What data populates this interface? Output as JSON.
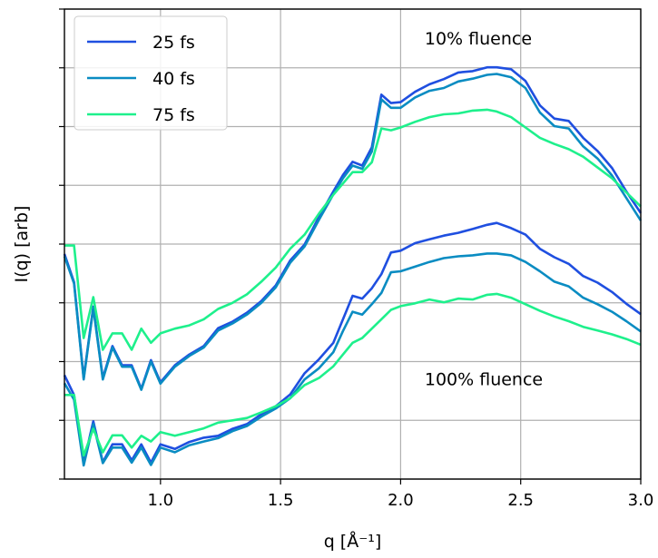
{
  "chart_data": {
    "type": "line",
    "xlabel": "q [Å⁻¹]",
    "ylabel": "I(q) [arb]",
    "xlim": [
      0.6,
      3.0
    ],
    "ylim": [
      0,
      1
    ],
    "xticks": [
      1.0,
      1.5,
      2.0,
      2.5,
      3.0
    ],
    "xtick_labels": [
      "1.0",
      "1.5",
      "2.0",
      "2.5",
      "3.0"
    ],
    "yticks": [
      0.0,
      0.125,
      0.25,
      0.375,
      0.5,
      0.625,
      0.75,
      0.875,
      1.0
    ],
    "grid": true,
    "legend_position": "top-left",
    "annotations": [
      {
        "text": "10% fluence",
        "x": 2.1,
        "y": 0.925
      },
      {
        "text": "100% fluence",
        "x": 2.1,
        "y": 0.2
      }
    ],
    "x": [
      0.6,
      0.64,
      0.68,
      0.72,
      0.76,
      0.8,
      0.84,
      0.88,
      0.92,
      0.96,
      1.0,
      1.06,
      1.12,
      1.18,
      1.24,
      1.3,
      1.36,
      1.42,
      1.48,
      1.54,
      1.6,
      1.66,
      1.72,
      1.76,
      1.8,
      1.84,
      1.88,
      1.92,
      1.96,
      2.0,
      2.06,
      2.12,
      2.18,
      2.24,
      2.3,
      2.36,
      2.4,
      2.46,
      2.52,
      2.58,
      2.64,
      2.7,
      2.76,
      2.82,
      2.88,
      2.94,
      3.0
    ],
    "series": [
      {
        "name": "25 fs",
        "color": "#1f4fe0",
        "group": "10% fluence",
        "values": [
          0.479,
          0.419,
          0.215,
          0.367,
          0.215,
          0.283,
          0.242,
          0.242,
          0.192,
          0.253,
          0.206,
          0.242,
          0.265,
          0.283,
          0.321,
          0.335,
          0.354,
          0.379,
          0.412,
          0.465,
          0.499,
          0.558,
          0.612,
          0.647,
          0.675,
          0.667,
          0.706,
          0.818,
          0.8,
          0.802,
          0.824,
          0.84,
          0.851,
          0.865,
          0.868,
          0.876,
          0.876,
          0.872,
          0.847,
          0.795,
          0.767,
          0.762,
          0.726,
          0.698,
          0.662,
          0.612,
          0.566
        ]
      },
      {
        "name": "40 fs",
        "color": "#0a8cc2",
        "group": "10% fluence",
        "values": [
          0.474,
          0.416,
          0.212,
          0.364,
          0.212,
          0.28,
          0.239,
          0.239,
          0.19,
          0.25,
          0.203,
          0.239,
          0.262,
          0.28,
          0.316,
          0.331,
          0.35,
          0.375,
          0.408,
          0.46,
          0.495,
          0.552,
          0.606,
          0.64,
          0.667,
          0.66,
          0.697,
          0.808,
          0.79,
          0.79,
          0.812,
          0.826,
          0.832,
          0.846,
          0.852,
          0.86,
          0.862,
          0.855,
          0.832,
          0.78,
          0.751,
          0.746,
          0.708,
          0.682,
          0.646,
          0.598,
          0.55
        ]
      },
      {
        "name": "75 fs",
        "color": "#1ef08c",
        "group": "10% fluence",
        "values": [
          0.497,
          0.497,
          0.3,
          0.387,
          0.275,
          0.31,
          0.31,
          0.275,
          0.32,
          0.29,
          0.31,
          0.32,
          0.327,
          0.34,
          0.362,
          0.375,
          0.393,
          0.42,
          0.45,
          0.49,
          0.52,
          0.565,
          0.605,
          0.629,
          0.653,
          0.653,
          0.674,
          0.746,
          0.742,
          0.748,
          0.76,
          0.77,
          0.776,
          0.778,
          0.784,
          0.786,
          0.782,
          0.77,
          0.748,
          0.726,
          0.713,
          0.702,
          0.686,
          0.663,
          0.64,
          0.61,
          0.58
        ]
      },
      {
        "name": "25 fs",
        "color": "#1f4fe0",
        "group": "100% fluence",
        "values": [
          0.221,
          0.179,
          0.034,
          0.123,
          0.036,
          0.074,
          0.074,
          0.04,
          0.074,
          0.035,
          0.074,
          0.064,
          0.079,
          0.088,
          0.092,
          0.107,
          0.117,
          0.138,
          0.155,
          0.18,
          0.225,
          0.255,
          0.29,
          0.34,
          0.39,
          0.384,
          0.406,
          0.436,
          0.482,
          0.486,
          0.502,
          0.51,
          0.518,
          0.524,
          0.532,
          0.541,
          0.545,
          0.534,
          0.52,
          0.49,
          0.472,
          0.458,
          0.432,
          0.418,
          0.398,
          0.373,
          0.351
        ]
      },
      {
        "name": "40 fs",
        "color": "#0a8cc2",
        "group": "100% fluence",
        "values": [
          0.204,
          0.169,
          0.029,
          0.117,
          0.034,
          0.067,
          0.067,
          0.035,
          0.067,
          0.03,
          0.067,
          0.057,
          0.072,
          0.08,
          0.087,
          0.102,
          0.113,
          0.133,
          0.15,
          0.172,
          0.212,
          0.236,
          0.27,
          0.315,
          0.356,
          0.35,
          0.372,
          0.396,
          0.44,
          0.442,
          0.452,
          0.462,
          0.47,
          0.474,
          0.476,
          0.48,
          0.48,
          0.476,
          0.462,
          0.442,
          0.42,
          0.41,
          0.386,
          0.372,
          0.356,
          0.336,
          0.314
        ]
      },
      {
        "name": "75 fs",
        "color": "#1ef08c",
        "group": "100% fluence",
        "values": [
          0.179,
          0.179,
          0.05,
          0.107,
          0.057,
          0.093,
          0.093,
          0.067,
          0.092,
          0.08,
          0.1,
          0.092,
          0.1,
          0.108,
          0.12,
          0.125,
          0.13,
          0.142,
          0.155,
          0.172,
          0.2,
          0.215,
          0.24,
          0.265,
          0.29,
          0.3,
          0.32,
          0.34,
          0.36,
          0.368,
          0.374,
          0.382,
          0.376,
          0.384,
          0.382,
          0.392,
          0.394,
          0.386,
          0.372,
          0.358,
          0.346,
          0.336,
          0.324,
          0.316,
          0.308,
          0.298,
          0.286
        ]
      }
    ],
    "legend": [
      {
        "label": "25 fs",
        "color": "#1f4fe0"
      },
      {
        "label": "40 fs",
        "color": "#0a8cc2"
      },
      {
        "label": "75 fs",
        "color": "#1ef08c"
      }
    ]
  }
}
